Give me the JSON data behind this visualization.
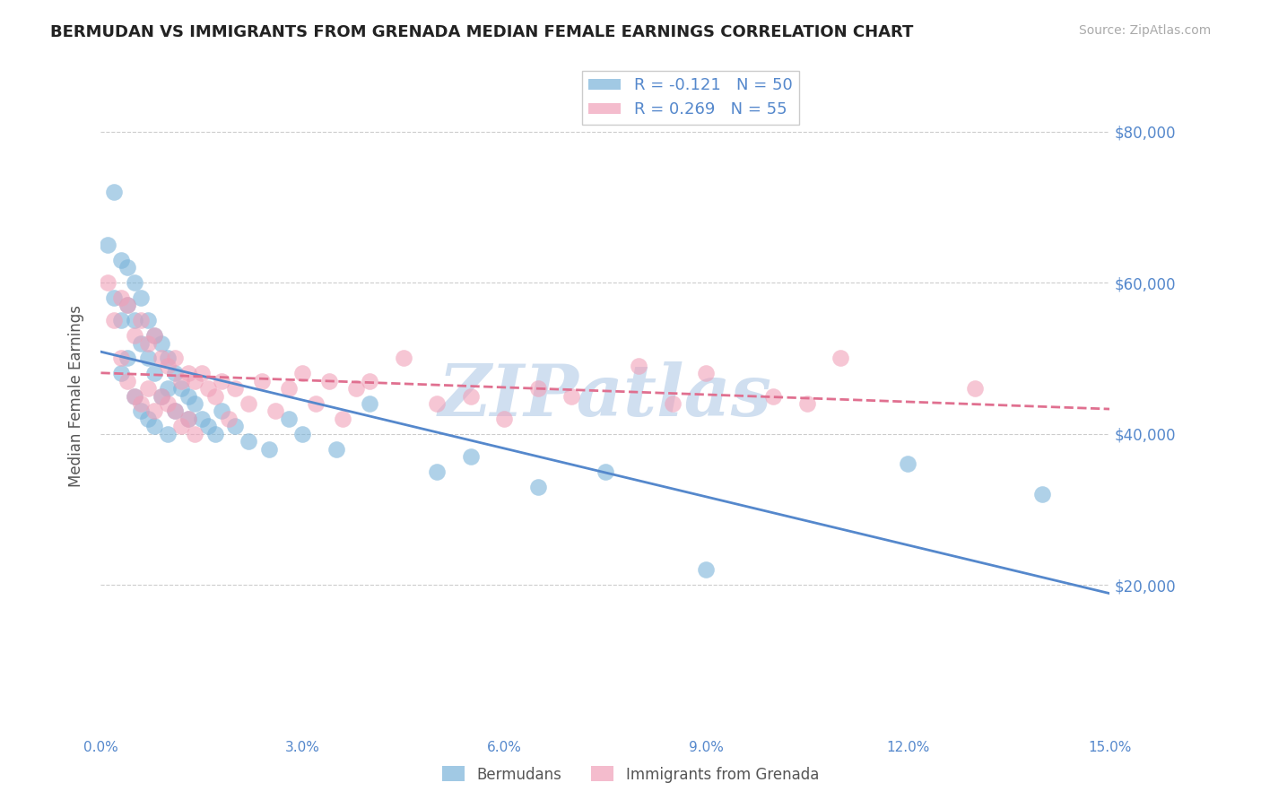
{
  "title": "BERMUDAN VS IMMIGRANTS FROM GRENADA MEDIAN FEMALE EARNINGS CORRELATION CHART",
  "source": "Source: ZipAtlas.com",
  "ylabel": "Median Female Earnings",
  "xlabel": "",
  "xlim": [
    0.0,
    0.15
  ],
  "ylim": [
    0,
    90000
  ],
  "yticks": [
    20000,
    40000,
    60000,
    80000
  ],
  "ytick_labels": [
    "$20,000",
    "$40,000",
    "$60,000",
    "$80,000"
  ],
  "xticks": [
    0.0,
    0.03,
    0.06,
    0.09,
    0.12,
    0.15
  ],
  "xtick_labels": [
    "0.0%",
    "3.0%",
    "6.0%",
    "9.0%",
    "12.0%",
    "15.0%"
  ],
  "legend_items": [
    {
      "label": "R = -0.121   N = 50",
      "color": "#a8c4e0"
    },
    {
      "label": "R = 0.269   N = 55",
      "color": "#f4a8b8"
    }
  ],
  "blue_color": "#7ab3d9",
  "pink_color": "#f0a0b8",
  "trend_blue_color": "#5588cc",
  "trend_pink_color": "#e07090",
  "watermark": "ZIPatlas",
  "watermark_color": "#d0dff0",
  "axis_color": "#5588cc",
  "grid_color": "#cccccc",
  "background_color": "#ffffff",
  "blue_x": [
    0.001,
    0.002,
    0.002,
    0.003,
    0.003,
    0.003,
    0.004,
    0.004,
    0.004,
    0.005,
    0.005,
    0.005,
    0.006,
    0.006,
    0.006,
    0.007,
    0.007,
    0.007,
    0.008,
    0.008,
    0.008,
    0.009,
    0.009,
    0.01,
    0.01,
    0.01,
    0.011,
    0.011,
    0.012,
    0.013,
    0.013,
    0.014,
    0.015,
    0.016,
    0.017,
    0.018,
    0.02,
    0.022,
    0.025,
    0.028,
    0.03,
    0.035,
    0.04,
    0.05,
    0.055,
    0.065,
    0.075,
    0.09,
    0.12,
    0.14
  ],
  "blue_y": [
    65000,
    72000,
    58000,
    63000,
    55000,
    48000,
    62000,
    57000,
    50000,
    60000,
    55000,
    45000,
    58000,
    52000,
    43000,
    55000,
    50000,
    42000,
    53000,
    48000,
    41000,
    52000,
    45000,
    50000,
    46000,
    40000,
    48000,
    43000,
    46000,
    45000,
    42000,
    44000,
    42000,
    41000,
    40000,
    43000,
    41000,
    39000,
    38000,
    42000,
    40000,
    38000,
    44000,
    35000,
    37000,
    33000,
    35000,
    22000,
    36000,
    32000
  ],
  "pink_x": [
    0.001,
    0.002,
    0.003,
    0.003,
    0.004,
    0.004,
    0.005,
    0.005,
    0.006,
    0.006,
    0.007,
    0.007,
    0.008,
    0.008,
    0.009,
    0.009,
    0.01,
    0.01,
    0.011,
    0.011,
    0.012,
    0.012,
    0.013,
    0.013,
    0.014,
    0.014,
    0.015,
    0.016,
    0.017,
    0.018,
    0.019,
    0.02,
    0.022,
    0.024,
    0.026,
    0.028,
    0.03,
    0.032,
    0.034,
    0.036,
    0.038,
    0.04,
    0.045,
    0.05,
    0.055,
    0.06,
    0.065,
    0.07,
    0.08,
    0.085,
    0.09,
    0.1,
    0.105,
    0.11,
    0.13
  ],
  "pink_y": [
    60000,
    55000,
    58000,
    50000,
    57000,
    47000,
    53000,
    45000,
    55000,
    44000,
    52000,
    46000,
    53000,
    43000,
    50000,
    45000,
    49000,
    44000,
    50000,
    43000,
    47000,
    41000,
    48000,
    42000,
    47000,
    40000,
    48000,
    46000,
    45000,
    47000,
    42000,
    46000,
    44000,
    47000,
    43000,
    46000,
    48000,
    44000,
    47000,
    42000,
    46000,
    47000,
    50000,
    44000,
    45000,
    42000,
    46000,
    45000,
    49000,
    44000,
    48000,
    45000,
    44000,
    50000,
    46000
  ]
}
